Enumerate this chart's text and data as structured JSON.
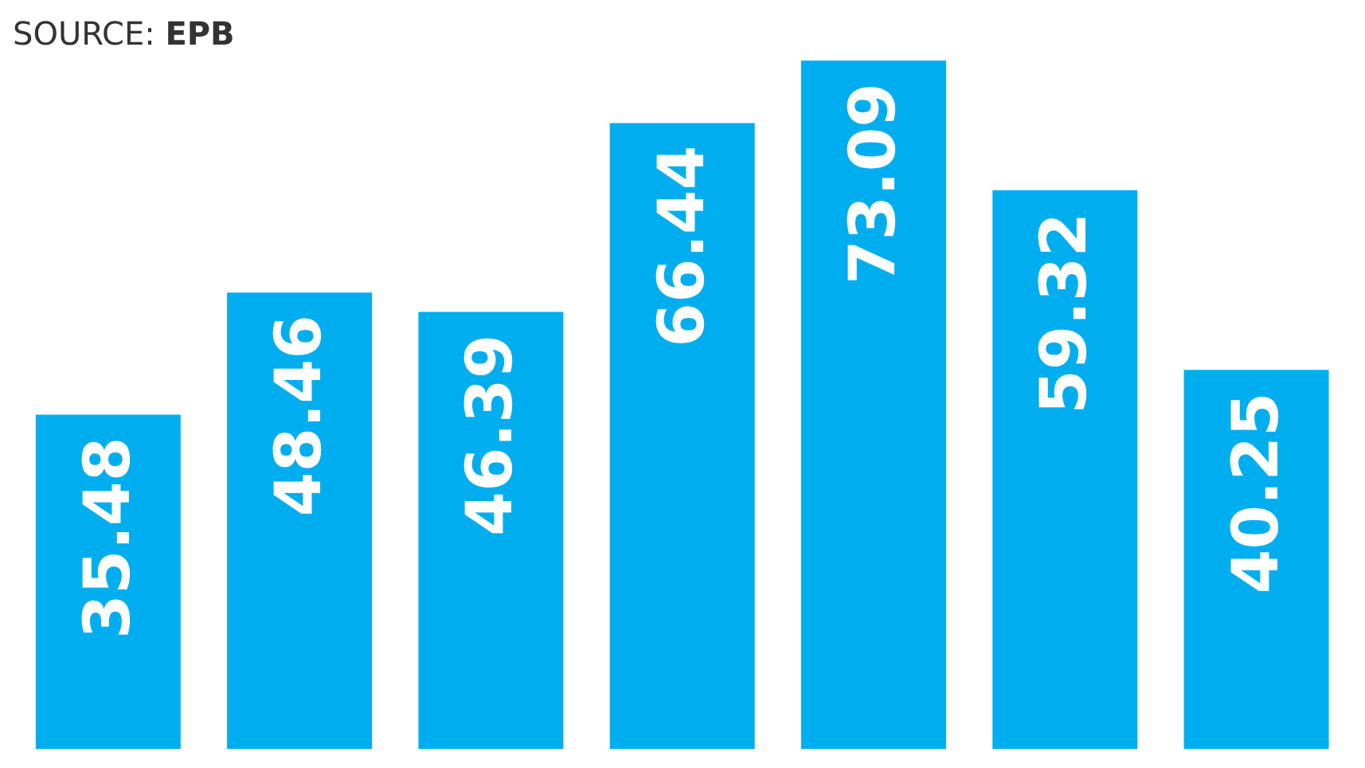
{
  "chart_data": {
    "type": "bar",
    "annotations": [
      "SOURCE: EPB"
    ],
    "categories": [
      null,
      null,
      null,
      null,
      null,
      null,
      null
    ],
    "values": [
      35.48,
      48.46,
      46.39,
      66.44,
      73.09,
      59.32,
      40.25
    ],
    "color": "#00aeef",
    "data_labels": true
  }
}
